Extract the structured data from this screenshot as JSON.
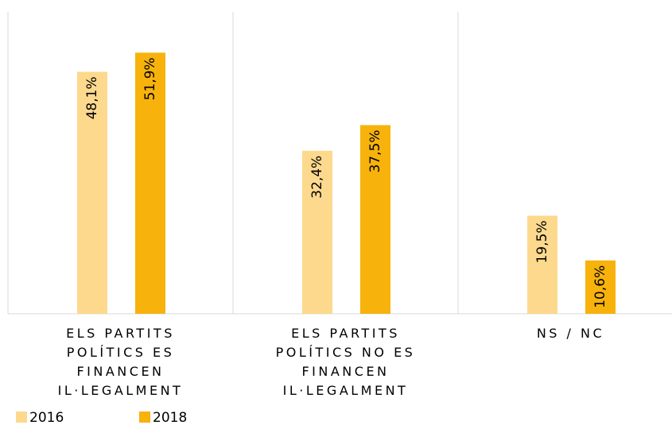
{
  "chart_data": {
    "type": "bar",
    "categories": [
      "ELS PARTITS POLÍTICS ES FINANCEN IL·LEGALMENT",
      "ELS PARTITS POLÍTICS NO ES FINANCEN IL·LEGALMENT",
      "NS / NC"
    ],
    "series": [
      {
        "name": "2016",
        "color": "#fdd98e",
        "values": [
          48.1,
          32.4,
          19.5
        ],
        "value_labels": [
          "48,1%",
          "32,4%",
          "19,5%"
        ]
      },
      {
        "name": "2018",
        "color": "#f7b20c",
        "values": [
          51.9,
          37.5,
          10.6
        ],
        "value_labels": [
          "51,9%",
          "37,5%",
          "10,6%"
        ]
      }
    ],
    "ylim": [
      0,
      60
    ]
  }
}
